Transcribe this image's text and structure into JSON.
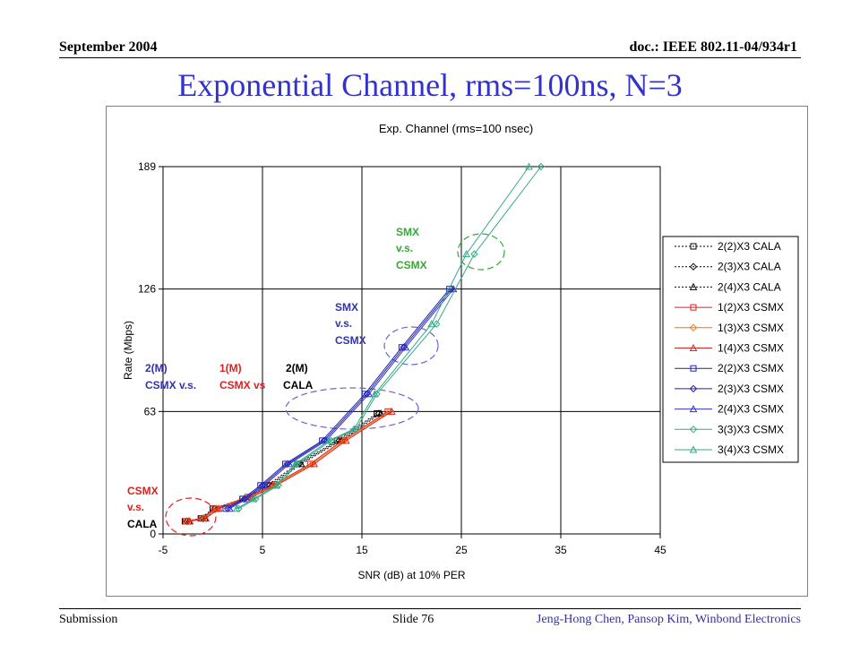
{
  "header": {
    "date": "September 2004",
    "doc": "doc.: IEEE 802.11-04/934r1"
  },
  "slide_title": "Exponential Channel, rms=100ns, N=3",
  "footer": {
    "left": "Submission",
    "slide": "Slide 76",
    "authors": "Jeng-Hong Chen, Pansop Kim, Winbond Electronics"
  },
  "annotations": [
    {
      "lines": [
        "SMX",
        "v.s.",
        "CSMX"
      ],
      "color": "#33aa33"
    },
    {
      "lines": [
        "SMX",
        "v.s.",
        "CSMX"
      ],
      "color": "#3333aa"
    },
    {
      "lines": [
        "2(M)",
        "CSMX v.s."
      ],
      "color": "#3333aa"
    },
    {
      "lines": [
        "1(M)",
        "CSMX vs"
      ],
      "color": "#dd2222"
    },
    {
      "lines": [
        "2(M)",
        "CALA"
      ],
      "color": "#000000"
    },
    {
      "lines": [
        "CSMX",
        "v.s."
      ],
      "color": "#dd2222"
    },
    {
      "lines": [
        "CALA"
      ],
      "color": "#000000"
    }
  ],
  "chart_data": {
    "type": "line",
    "title": "Exp. Channel (rms=100 nsec)",
    "xlabel": "SNR (dB) at 10% PER",
    "ylabel": "Rate (Mbps)",
    "xlim": [
      -5,
      45
    ],
    "ylim": [
      0,
      189
    ],
    "xticks": [
      -5,
      5,
      15,
      25,
      35,
      45
    ],
    "yticks": [
      0,
      63,
      126,
      189
    ],
    "grid": true,
    "legend_position": "right",
    "series": [
      {
        "name": "2(2)X3 CALA",
        "color": "#000000",
        "marker": "square",
        "dash": true,
        "x": [
          -2.8,
          -1.2,
          0,
          3,
          5.5,
          8.5,
          12.5,
          16.5
        ],
        "y": [
          6.5,
          8,
          13,
          18,
          25,
          36,
          48,
          62
        ]
      },
      {
        "name": "2(3)X3 CALA",
        "color": "#000000",
        "marker": "diamond",
        "dash": true,
        "x": [
          -2.6,
          -1,
          0.2,
          3.2,
          5.7,
          8.7,
          12.7,
          16.7
        ],
        "y": [
          6.5,
          8,
          13,
          18,
          25,
          36,
          48,
          62
        ]
      },
      {
        "name": "2(4)X3 CALA",
        "color": "#000000",
        "marker": "triangle",
        "dash": true,
        "x": [
          -2.4,
          -0.8,
          0.4,
          3.4,
          5.9,
          8.9,
          12.9,
          16.9
        ],
        "y": [
          6.5,
          8,
          13,
          18,
          25,
          36,
          48,
          62
        ]
      },
      {
        "name": "1(2)X3 CSMX",
        "color": "#dd2222",
        "marker": "square",
        "dash": false,
        "x": [
          -2.7,
          -1.1,
          0.2,
          3.5,
          6,
          9.8,
          13,
          17.6
        ],
        "y": [
          6.5,
          8,
          13,
          19,
          25,
          36,
          48,
          63
        ]
      },
      {
        "name": "1(3)X3 CSMX",
        "color": "#ee7711",
        "marker": "diamond",
        "dash": false,
        "x": [
          -2.5,
          -0.9,
          0.4,
          3.7,
          6.2,
          10,
          13.2,
          17.8
        ],
        "y": [
          6.5,
          8,
          13,
          19,
          25,
          36,
          48,
          63
        ]
      },
      {
        "name": "1(4)X3 CSMX",
        "color": "#dd2222",
        "marker": "triangle",
        "dash": false,
        "x": [
          -2.3,
          -0.7,
          0.6,
          3.9,
          6.4,
          10.2,
          13.4,
          18
        ],
        "y": [
          6.5,
          8,
          13,
          19,
          25,
          36,
          48,
          63
        ]
      },
      {
        "name": "2(2)X3 CSMX",
        "color": "#2222aa",
        "marker": "square",
        "dash": false,
        "x": [
          1.3,
          3,
          4.8,
          7.3,
          11,
          15.3,
          19,
          23.8
        ],
        "y": [
          13,
          18,
          25,
          36,
          48,
          72,
          96,
          126
        ]
      },
      {
        "name": "2(3)X3 CSMX",
        "color": "#2222aa",
        "marker": "diamond",
        "dash": false,
        "x": [
          1.5,
          3.2,
          5,
          7.5,
          11.2,
          15.5,
          19.2,
          24
        ],
        "y": [
          13,
          18,
          25,
          36,
          48,
          72,
          96,
          126
        ]
      },
      {
        "name": "2(4)X3 CSMX",
        "color": "#3333cc",
        "marker": "triangle",
        "dash": false,
        "x": [
          1.7,
          3.4,
          5.2,
          7.7,
          11.4,
          15.7,
          19.4,
          24.2
        ],
        "y": [
          13,
          18,
          25,
          36,
          48,
          72,
          96,
          126
        ]
      },
      {
        "name": "3(3)X3 CSMX",
        "color": "#33aa88",
        "marker": "diamond",
        "dash": false,
        "x": [
          2.6,
          4.3,
          6.6,
          8.5,
          11.9,
          14.4,
          16.5,
          22.5,
          26.3,
          33
        ],
        "y": [
          13,
          18,
          25,
          36,
          48,
          54,
          72,
          108,
          144,
          189
        ]
      },
      {
        "name": "3(4)X3 CSMX",
        "color": "#33aa88",
        "marker": "triangle",
        "dash": false,
        "x": [
          2.4,
          4.1,
          6.4,
          8.3,
          11.7,
          14.2,
          16.3,
          22,
          25.5,
          31.8
        ],
        "y": [
          13,
          18,
          25,
          36,
          48,
          54,
          72,
          108,
          144,
          189
        ]
      }
    ]
  }
}
